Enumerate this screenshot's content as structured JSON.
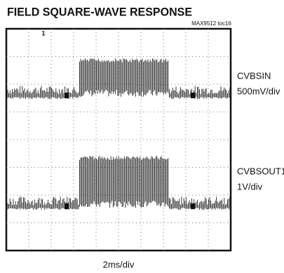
{
  "figure": {
    "title": "FIELD SQUARE-WAVE RESPONSE",
    "tag": "MAX9512 toc16",
    "channels": [
      {
        "name": "CVBSIN",
        "scale": "500mV/div"
      },
      {
        "name": "CVBSOUT1",
        "scale": "1V/div"
      }
    ],
    "timebase": "2ms/div"
  }
}
